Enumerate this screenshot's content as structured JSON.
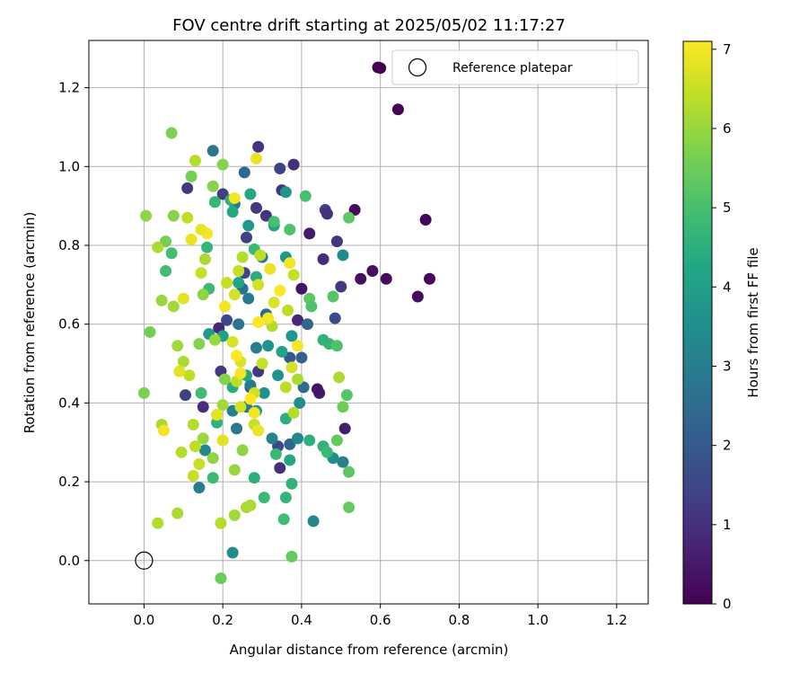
{
  "chart_data": {
    "type": "scatter",
    "title": "FOV centre drift starting at 2025/05/02 11:17:27",
    "xlabel": "Angular distance from reference (arcmin)",
    "ylabel": "Rotation from reference (arcmin)",
    "xlim": [
      -0.14,
      1.28
    ],
    "ylim": [
      -0.11,
      1.32
    ],
    "xticks": [
      0.0,
      0.2,
      0.4,
      0.6,
      0.8,
      1.0,
      1.2
    ],
    "yticks": [
      0.0,
      0.2,
      0.4,
      0.6,
      0.8,
      1.0,
      1.2
    ],
    "xtick_labels": [
      "0.0",
      "0.2",
      "0.4",
      "0.6",
      "0.8",
      "1.0",
      "1.2"
    ],
    "ytick_labels": [
      "0.0",
      "0.2",
      "0.4",
      "0.6",
      "0.8",
      "1.0",
      "1.2"
    ],
    "grid": true,
    "colormap": "viridis",
    "colorbar": {
      "label": "Hours from first FF file",
      "range": [
        0,
        7.1
      ],
      "ticks": [
        0,
        1,
        2,
        3,
        4,
        5,
        6,
        7
      ],
      "tick_labels": [
        "0",
        "1",
        "2",
        "3",
        "4",
        "5",
        "6",
        "7"
      ]
    },
    "legend": {
      "placement": "top-right",
      "entries": [
        {
          "label": "",
          "marker": "filled-circle",
          "color": "#440154"
        },
        {
          "label": "Reference platepar",
          "marker": "open-circle",
          "color": "#000000"
        }
      ]
    },
    "reference_point": {
      "x": 0.0,
      "y": 0.0,
      "label": "Reference platepar"
    },
    "points": [
      {
        "x": 0.6,
        "y": 1.25,
        "t": 0.0
      },
      {
        "x": 0.645,
        "y": 1.145,
        "t": 0.0
      },
      {
        "x": 0.715,
        "y": 0.865,
        "t": 0.1
      },
      {
        "x": 0.725,
        "y": 0.715,
        "t": 0.1
      },
      {
        "x": 0.695,
        "y": 0.67,
        "t": 0.2
      },
      {
        "x": 0.615,
        "y": 0.715,
        "t": 0.2
      },
      {
        "x": 0.58,
        "y": 0.735,
        "t": 0.3
      },
      {
        "x": 0.55,
        "y": 0.715,
        "t": 0.3
      },
      {
        "x": 0.535,
        "y": 0.89,
        "t": 0.2
      },
      {
        "x": 0.51,
        "y": 0.335,
        "t": 0.6
      },
      {
        "x": 0.445,
        "y": 0.425,
        "t": 0.5
      },
      {
        "x": 0.44,
        "y": 0.435,
        "t": 0.4
      },
      {
        "x": 0.42,
        "y": 0.83,
        "t": 0.5
      },
      {
        "x": 0.4,
        "y": 0.69,
        "t": 0.4
      },
      {
        "x": 0.39,
        "y": 0.61,
        "t": 0.8
      },
      {
        "x": 0.38,
        "y": 1.005,
        "t": 1.0
      },
      {
        "x": 0.455,
        "y": 0.765,
        "t": 0.9
      },
      {
        "x": 0.46,
        "y": 0.89,
        "t": 1.3
      },
      {
        "x": 0.465,
        "y": 0.88,
        "t": 1.0
      },
      {
        "x": 0.49,
        "y": 0.81,
        "t": 1.1
      },
      {
        "x": 0.485,
        "y": 0.615,
        "t": 1.6
      },
      {
        "x": 0.5,
        "y": 0.695,
        "t": 1.2
      },
      {
        "x": 0.345,
        "y": 0.995,
        "t": 1.4
      },
      {
        "x": 0.35,
        "y": 0.94,
        "t": 1.1
      },
      {
        "x": 0.29,
        "y": 1.05,
        "t": 1.1
      },
      {
        "x": 0.285,
        "y": 0.895,
        "t": 1.2
      },
      {
        "x": 0.31,
        "y": 0.875,
        "t": 1.1
      },
      {
        "x": 0.26,
        "y": 0.82,
        "t": 1.4
      },
      {
        "x": 0.255,
        "y": 0.73,
        "t": 1.5
      },
      {
        "x": 0.2,
        "y": 0.93,
        "t": 1.3
      },
      {
        "x": 0.11,
        "y": 0.945,
        "t": 1.2
      },
      {
        "x": 0.21,
        "y": 0.61,
        "t": 1.6
      },
      {
        "x": 0.19,
        "y": 0.59,
        "t": 0.8
      },
      {
        "x": 0.195,
        "y": 0.48,
        "t": 1.2
      },
      {
        "x": 0.105,
        "y": 0.42,
        "t": 1.3
      },
      {
        "x": 0.15,
        "y": 0.39,
        "t": 0.9
      },
      {
        "x": 0.27,
        "y": 0.44,
        "t": 1.3
      },
      {
        "x": 0.29,
        "y": 0.48,
        "t": 1.2
      },
      {
        "x": 0.34,
        "y": 0.29,
        "t": 1.6
      },
      {
        "x": 0.345,
        "y": 0.235,
        "t": 1.0
      },
      {
        "x": 0.37,
        "y": 0.295,
        "t": 2.3
      },
      {
        "x": 0.37,
        "y": 0.515,
        "t": 2.0
      },
      {
        "x": 0.4,
        "y": 0.515,
        "t": 2.2
      },
      {
        "x": 0.405,
        "y": 0.44,
        "t": 2.5
      },
      {
        "x": 0.415,
        "y": 0.6,
        "t": 2.4
      },
      {
        "x": 0.255,
        "y": 0.985,
        "t": 2.4
      },
      {
        "x": 0.175,
        "y": 1.04,
        "t": 2.8
      },
      {
        "x": 0.23,
        "y": 0.905,
        "t": 2.9
      },
      {
        "x": 0.25,
        "y": 0.69,
        "t": 2.6
      },
      {
        "x": 0.3,
        "y": 0.77,
        "t": 2.8
      },
      {
        "x": 0.31,
        "y": 0.625,
        "t": 2.5
      },
      {
        "x": 0.265,
        "y": 0.665,
        "t": 2.9
      },
      {
        "x": 0.24,
        "y": 0.6,
        "t": 2.7
      },
      {
        "x": 0.285,
        "y": 0.54,
        "t": 3.0
      },
      {
        "x": 0.27,
        "y": 0.445,
        "t": 2.9
      },
      {
        "x": 0.26,
        "y": 0.39,
        "t": 3.0
      },
      {
        "x": 0.225,
        "y": 0.38,
        "t": 3.1
      },
      {
        "x": 0.235,
        "y": 0.335,
        "t": 2.8
      },
      {
        "x": 0.14,
        "y": 0.185,
        "t": 3.0
      },
      {
        "x": 0.155,
        "y": 0.28,
        "t": 3.3
      },
      {
        "x": 0.325,
        "y": 0.31,
        "t": 3.2
      },
      {
        "x": 0.39,
        "y": 0.31,
        "t": 3.3
      },
      {
        "x": 0.48,
        "y": 0.26,
        "t": 3.5
      },
      {
        "x": 0.505,
        "y": 0.25,
        "t": 3.1
      },
      {
        "x": 0.505,
        "y": 0.775,
        "t": 3.4
      },
      {
        "x": 0.43,
        "y": 0.1,
        "t": 3.3
      },
      {
        "x": 0.225,
        "y": 0.02,
        "t": 3.5
      },
      {
        "x": 0.34,
        "y": 0.47,
        "t": 3.6
      },
      {
        "x": 0.395,
        "y": 0.4,
        "t": 3.5
      },
      {
        "x": 0.375,
        "y": 0.57,
        "t": 3.8
      },
      {
        "x": 0.36,
        "y": 0.77,
        "t": 3.7
      },
      {
        "x": 0.36,
        "y": 0.935,
        "t": 3.7
      },
      {
        "x": 0.265,
        "y": 0.85,
        "t": 3.8
      },
      {
        "x": 0.165,
        "y": 0.575,
        "t": 3.9
      },
      {
        "x": 0.315,
        "y": 0.545,
        "t": 3.6
      },
      {
        "x": 0.285,
        "y": 0.38,
        "t": 3.9
      },
      {
        "x": 0.305,
        "y": 0.425,
        "t": 3.6
      },
      {
        "x": 0.33,
        "y": 0.85,
        "t": 4.1
      },
      {
        "x": 0.27,
        "y": 0.93,
        "t": 4.3
      },
      {
        "x": 0.225,
        "y": 0.885,
        "t": 4.3
      },
      {
        "x": 0.285,
        "y": 0.72,
        "t": 4.4
      },
      {
        "x": 0.24,
        "y": 0.705,
        "t": 4.1
      },
      {
        "x": 0.2,
        "y": 0.57,
        "t": 4.0
      },
      {
        "x": 0.225,
        "y": 0.44,
        "t": 4.4
      },
      {
        "x": 0.26,
        "y": 0.47,
        "t": 4.2
      },
      {
        "x": 0.35,
        "y": 0.53,
        "t": 4.1
      },
      {
        "x": 0.36,
        "y": 0.36,
        "t": 4.5
      },
      {
        "x": 0.37,
        "y": 0.255,
        "t": 4.3
      },
      {
        "x": 0.42,
        "y": 0.305,
        "t": 4.5
      },
      {
        "x": 0.455,
        "y": 0.29,
        "t": 4.6
      },
      {
        "x": 0.465,
        "y": 0.275,
        "t": 4.8
      },
      {
        "x": 0.47,
        "y": 0.55,
        "t": 4.7
      },
      {
        "x": 0.455,
        "y": 0.56,
        "t": 4.6
      },
      {
        "x": 0.36,
        "y": 0.16,
        "t": 4.7
      },
      {
        "x": 0.305,
        "y": 0.16,
        "t": 4.8
      },
      {
        "x": 0.355,
        "y": 0.105,
        "t": 4.9
      },
      {
        "x": 0.375,
        "y": 0.195,
        "t": 4.6
      },
      {
        "x": 0.335,
        "y": 0.27,
        "t": 4.8
      },
      {
        "x": 0.28,
        "y": 0.21,
        "t": 4.5
      },
      {
        "x": 0.175,
        "y": 0.21,
        "t": 4.8
      },
      {
        "x": 0.145,
        "y": 0.425,
        "t": 4.9
      },
      {
        "x": 0.185,
        "y": 0.35,
        "t": 4.6
      },
      {
        "x": 0.055,
        "y": 0.735,
        "t": 4.9
      },
      {
        "x": 0.07,
        "y": 0.78,
        "t": 4.9
      },
      {
        "x": 0.16,
        "y": 0.795,
        "t": 4.7
      },
      {
        "x": 0.165,
        "y": 0.69,
        "t": 4.8
      },
      {
        "x": 0.18,
        "y": 0.91,
        "t": 4.7
      },
      {
        "x": 0.22,
        "y": 0.915,
        "t": 4.6
      },
      {
        "x": 0.28,
        "y": 0.79,
        "t": 4.8
      },
      {
        "x": 0.33,
        "y": 0.86,
        "t": 5.0
      },
      {
        "x": 0.37,
        "y": 0.84,
        "t": 5.1
      },
      {
        "x": 0.41,
        "y": 0.925,
        "t": 5.0
      },
      {
        "x": 0.52,
        "y": 0.87,
        "t": 5.3
      },
      {
        "x": 0.42,
        "y": 0.665,
        "t": 5.3
      },
      {
        "x": 0.425,
        "y": 0.645,
        "t": 5.1
      },
      {
        "x": 0.48,
        "y": 0.67,
        "t": 5.2
      },
      {
        "x": 0.49,
        "y": 0.545,
        "t": 5.1
      },
      {
        "x": 0.515,
        "y": 0.42,
        "t": 5.2
      },
      {
        "x": 0.505,
        "y": 0.39,
        "t": 5.5
      },
      {
        "x": 0.49,
        "y": 0.305,
        "t": 5.4
      },
      {
        "x": 0.52,
        "y": 0.225,
        "t": 5.3
      },
      {
        "x": 0.52,
        "y": 0.135,
        "t": 5.4
      },
      {
        "x": 0.375,
        "y": 0.01,
        "t": 5.4
      },
      {
        "x": 0.195,
        "y": -0.045,
        "t": 5.5
      },
      {
        "x": 0.055,
        "y": 0.81,
        "t": 5.6
      },
      {
        "x": 0.015,
        "y": 0.58,
        "t": 5.6
      },
      {
        "x": 0.07,
        "y": 1.085,
        "t": 5.7
      },
      {
        "x": 0.12,
        "y": 0.975,
        "t": 5.6
      },
      {
        "x": 0.2,
        "y": 1.005,
        "t": 5.8
      },
      {
        "x": 0.175,
        "y": 0.95,
        "t": 5.8
      },
      {
        "x": 0.15,
        "y": 0.675,
        "t": 5.9
      },
      {
        "x": 0.14,
        "y": 0.55,
        "t": 5.8
      },
      {
        "x": 0.18,
        "y": 0.56,
        "t": 6.0
      },
      {
        "x": 0.2,
        "y": 0.395,
        "t": 6.1
      },
      {
        "x": 0.15,
        "y": 0.31,
        "t": 6.0
      },
      {
        "x": 0.175,
        "y": 0.26,
        "t": 5.9
      },
      {
        "x": 0.205,
        "y": 0.46,
        "t": 5.8
      },
      {
        "x": 0.25,
        "y": 0.28,
        "t": 5.9
      },
      {
        "x": 0.23,
        "y": 0.23,
        "t": 6.0
      },
      {
        "x": 0.23,
        "y": 0.115,
        "t": 6.1
      },
      {
        "x": 0.26,
        "y": 0.135,
        "t": 6.2
      },
      {
        "x": 0.27,
        "y": 0.14,
        "t": 6.2
      },
      {
        "x": 0.195,
        "y": 0.095,
        "t": 6.3
      },
      {
        "x": 0.085,
        "y": 0.12,
        "t": 6.2
      },
      {
        "x": 0.035,
        "y": 0.095,
        "t": 6.3
      },
      {
        "x": 0.0,
        "y": 0.425,
        "t": 5.7
      },
      {
        "x": 0.005,
        "y": 0.875,
        "t": 5.9
      },
      {
        "x": 0.045,
        "y": 0.66,
        "t": 6.0
      },
      {
        "x": 0.075,
        "y": 0.645,
        "t": 6.1
      },
      {
        "x": 0.035,
        "y": 0.795,
        "t": 6.2
      },
      {
        "x": 0.085,
        "y": 0.545,
        "t": 6.1
      },
      {
        "x": 0.1,
        "y": 0.505,
        "t": 6.2
      },
      {
        "x": 0.115,
        "y": 0.47,
        "t": 6.4
      },
      {
        "x": 0.125,
        "y": 0.345,
        "t": 6.3
      },
      {
        "x": 0.13,
        "y": 0.29,
        "t": 6.4
      },
      {
        "x": 0.125,
        "y": 0.215,
        "t": 6.5
      },
      {
        "x": 0.14,
        "y": 0.245,
        "t": 6.5
      },
      {
        "x": 0.095,
        "y": 0.275,
        "t": 6.3
      },
      {
        "x": 0.045,
        "y": 0.345,
        "t": 6.2
      },
      {
        "x": 0.075,
        "y": 0.875,
        "t": 5.8
      },
      {
        "x": 0.11,
        "y": 0.87,
        "t": 6.4
      },
      {
        "x": 0.13,
        "y": 1.015,
        "t": 6.3
      },
      {
        "x": 0.155,
        "y": 0.765,
        "t": 6.2
      },
      {
        "x": 0.145,
        "y": 0.73,
        "t": 6.5
      },
      {
        "x": 0.21,
        "y": 0.705,
        "t": 6.5
      },
      {
        "x": 0.23,
        "y": 0.675,
        "t": 6.6
      },
      {
        "x": 0.24,
        "y": 0.735,
        "t": 6.5
      },
      {
        "x": 0.25,
        "y": 0.77,
        "t": 6.3
      },
      {
        "x": 0.295,
        "y": 0.775,
        "t": 6.4
      },
      {
        "x": 0.29,
        "y": 0.7,
        "t": 6.6
      },
      {
        "x": 0.33,
        "y": 0.655,
        "t": 6.7
      },
      {
        "x": 0.325,
        "y": 0.595,
        "t": 6.3
      },
      {
        "x": 0.3,
        "y": 0.5,
        "t": 6.5
      },
      {
        "x": 0.245,
        "y": 0.505,
        "t": 6.7
      },
      {
        "x": 0.235,
        "y": 0.455,
        "t": 6.4
      },
      {
        "x": 0.28,
        "y": 0.425,
        "t": 6.6
      },
      {
        "x": 0.28,
        "y": 0.345,
        "t": 6.5
      },
      {
        "x": 0.36,
        "y": 0.44,
        "t": 6.4
      },
      {
        "x": 0.375,
        "y": 0.49,
        "t": 6.6
      },
      {
        "x": 0.38,
        "y": 0.375,
        "t": 6.3
      },
      {
        "x": 0.39,
        "y": 0.46,
        "t": 6.2
      },
      {
        "x": 0.365,
        "y": 0.635,
        "t": 6.4
      },
      {
        "x": 0.38,
        "y": 0.725,
        "t": 6.5
      },
      {
        "x": 0.495,
        "y": 0.465,
        "t": 6.2
      },
      {
        "x": 0.39,
        "y": 0.545,
        "t": 7.0
      },
      {
        "x": 0.37,
        "y": 0.755,
        "t": 7.0
      },
      {
        "x": 0.345,
        "y": 0.685,
        "t": 7.1
      },
      {
        "x": 0.32,
        "y": 0.74,
        "t": 6.9
      },
      {
        "x": 0.315,
        "y": 0.615,
        "t": 7.0
      },
      {
        "x": 0.29,
        "y": 0.605,
        "t": 7.1
      },
      {
        "x": 0.285,
        "y": 1.02,
        "t": 6.9
      },
      {
        "x": 0.23,
        "y": 0.92,
        "t": 7.0
      },
      {
        "x": 0.16,
        "y": 0.83,
        "t": 7.0
      },
      {
        "x": 0.12,
        "y": 0.815,
        "t": 6.9
      },
      {
        "x": 0.205,
        "y": 0.645,
        "t": 7.0
      },
      {
        "x": 0.235,
        "y": 0.52,
        "t": 7.1
      },
      {
        "x": 0.245,
        "y": 0.475,
        "t": 7.0
      },
      {
        "x": 0.27,
        "y": 0.41,
        "t": 7.1
      },
      {
        "x": 0.28,
        "y": 0.375,
        "t": 7.0
      },
      {
        "x": 0.29,
        "y": 0.33,
        "t": 6.9
      },
      {
        "x": 0.09,
        "y": 0.48,
        "t": 6.8
      },
      {
        "x": 0.05,
        "y": 0.33,
        "t": 7.0
      },
      {
        "x": 0.1,
        "y": 0.665,
        "t": 6.8
      },
      {
        "x": 0.145,
        "y": 0.84,
        "t": 6.9
      },
      {
        "x": 0.225,
        "y": 0.555,
        "t": 6.7
      },
      {
        "x": 0.2,
        "y": 0.305,
        "t": 6.8
      },
      {
        "x": 0.245,
        "y": 0.39,
        "t": 6.6
      },
      {
        "x": 0.185,
        "y": 0.37,
        "t": 6.8
      }
    ]
  }
}
